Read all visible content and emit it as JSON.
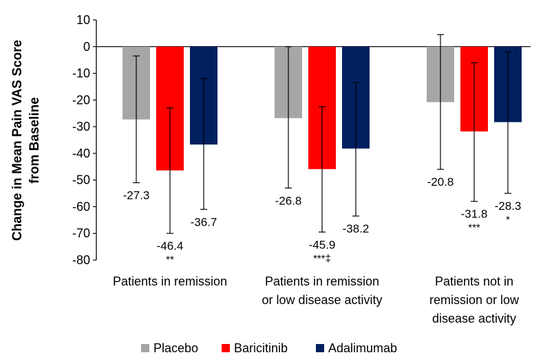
{
  "chart_data": {
    "type": "bar",
    "ylabel_lines": [
      "Change in Mean Pain VAS Score",
      "from Baseline"
    ],
    "ylim": [
      -80,
      10
    ],
    "yticks": [
      10,
      0,
      -10,
      -20,
      -30,
      -40,
      -50,
      -60,
      -70,
      -80
    ],
    "grid": false,
    "legend_position": "bottom",
    "categories": [
      [
        "Patients in remission"
      ],
      [
        "Patients in remission",
        "or low disease activity"
      ],
      [
        "Patients not in",
        "remission or low",
        "disease activity"
      ]
    ],
    "series": [
      {
        "name": "Placebo",
        "color": "#a6a6a6",
        "values": [
          -27.3,
          -26.8,
          -20.8
        ],
        "labels": [
          "-27.3",
          "-26.8",
          "-20.8"
        ],
        "err_low": [
          -51,
          -53,
          -46
        ],
        "err_high": [
          -3.5,
          0,
          4.5
        ],
        "sig": [
          "",
          "",
          ""
        ]
      },
      {
        "name": "Baricitinib",
        "color": "#ff0000",
        "values": [
          -46.4,
          -45.9,
          -31.8
        ],
        "labels": [
          "-46.4",
          "-45.9",
          "-31.8"
        ],
        "err_low": [
          -70,
          -69.5,
          -58
        ],
        "err_high": [
          -23,
          -22.5,
          -6
        ],
        "sig": [
          "**",
          "***‡",
          "***"
        ]
      },
      {
        "name": "Adalimumab",
        "color": "#002060",
        "values": [
          -36.7,
          -38.2,
          -28.3
        ],
        "labels": [
          "-36.7",
          "-38.2",
          "-28.3"
        ],
        "err_low": [
          -61,
          -63.5,
          -55
        ],
        "err_high": [
          -12,
          -13.5,
          -2
        ],
        "sig": [
          "",
          "",
          "*"
        ]
      }
    ]
  }
}
